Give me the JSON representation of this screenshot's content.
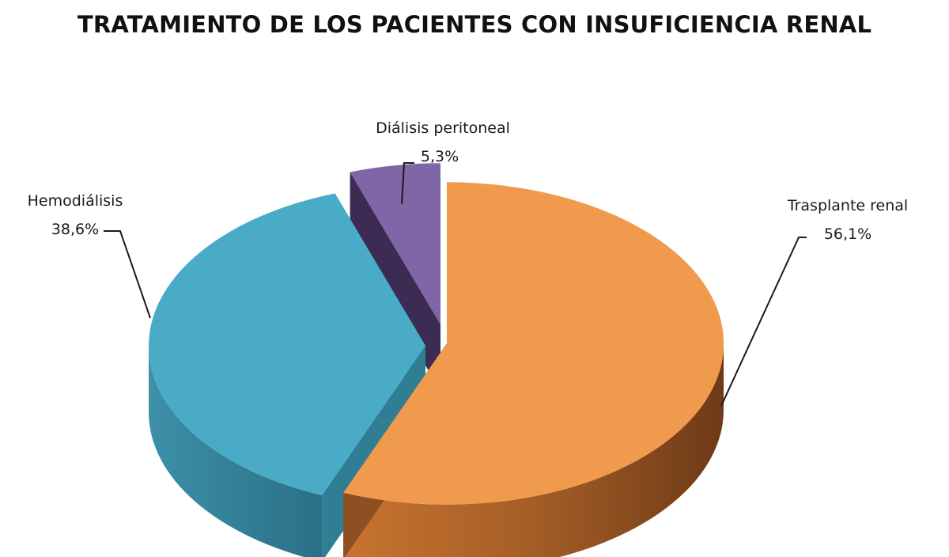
{
  "chart_data": {
    "type": "pie",
    "title": "TRATAMIENTO DE LOS PACIENTES CON INSUFICIENCIA RENAL",
    "series": [
      {
        "name": "Trasplante renal",
        "value": 56.1,
        "display": "56,1%",
        "color": "#F09A4E",
        "side_color": "#8E4F22"
      },
      {
        "name": "Hemodiálisis",
        "value": 38.6,
        "display": "38,6%",
        "color": "#4AABC7",
        "side_color": "#2F7E94"
      },
      {
        "name": "Diálisis peritoneal",
        "value": 5.3,
        "display": "5,3%",
        "color": "#8066A6",
        "side_color": "#3C2B52"
      }
    ],
    "legend": "none",
    "style": "3d-exploded"
  }
}
